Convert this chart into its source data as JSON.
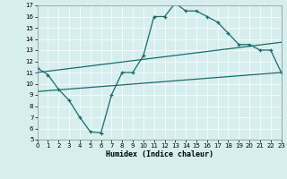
{
  "title": "",
  "xlabel": "Humidex (Indice chaleur)",
  "xlim": [
    0,
    23
  ],
  "ylim": [
    5,
    17
  ],
  "yticks": [
    5,
    6,
    7,
    8,
    9,
    10,
    11,
    12,
    13,
    14,
    15,
    16,
    17
  ],
  "xticks": [
    0,
    1,
    2,
    3,
    4,
    5,
    6,
    7,
    8,
    9,
    10,
    11,
    12,
    13,
    14,
    15,
    16,
    17,
    18,
    19,
    20,
    21,
    22,
    23
  ],
  "bg_color": "#d6eeee",
  "line_color": "#1a6b6b",
  "line1_x": [
    0,
    1,
    2,
    3,
    4,
    5,
    6,
    7,
    8,
    9,
    10,
    11,
    12,
    13,
    14,
    15,
    16,
    17,
    18,
    19,
    20,
    21,
    22,
    23
  ],
  "line1_y": [
    11.4,
    10.8,
    9.5,
    8.5,
    7.0,
    5.7,
    5.6,
    9.0,
    11.0,
    11.0,
    12.5,
    16.0,
    16.0,
    17.2,
    16.5,
    16.5,
    16.0,
    15.5,
    14.5,
    13.5,
    13.5,
    13.0,
    13.0,
    11.0
  ],
  "line2_x": [
    0,
    23
  ],
  "line2_y": [
    11.0,
    13.7
  ],
  "line3_x": [
    0,
    23
  ],
  "line3_y": [
    9.3,
    11.0
  ]
}
